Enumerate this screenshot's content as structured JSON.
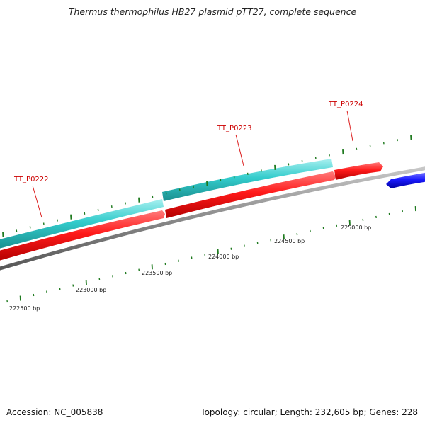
{
  "title": "Thermus thermophilus HB27 plasmid pTT27, complete sequence",
  "footer": {
    "accession": "Accession: NC_005838",
    "summary": "Topology: circular; Length: 232,605 bp; Genes: 228"
  },
  "genes": [
    {
      "label": "TT_P0222"
    },
    {
      "label": "TT_P0223"
    },
    {
      "label": "TT_P0224"
    }
  ],
  "position_labels": [
    {
      "text": "222500 bp"
    },
    {
      "text": "223000 bp"
    },
    {
      "text": "223500 bp"
    },
    {
      "text": "224000 bp"
    },
    {
      "text": "224500 bp"
    },
    {
      "text": "225000 bp"
    }
  ],
  "colors": {
    "backbone": "#8a8a8a",
    "forward_strand": "#ff1a1a",
    "other_strand": "#1a1aff",
    "cds_feature": "#33cccc",
    "tick": "#1f7a1f",
    "gene_label": "#cc0000",
    "position_label": "#222222"
  }
}
